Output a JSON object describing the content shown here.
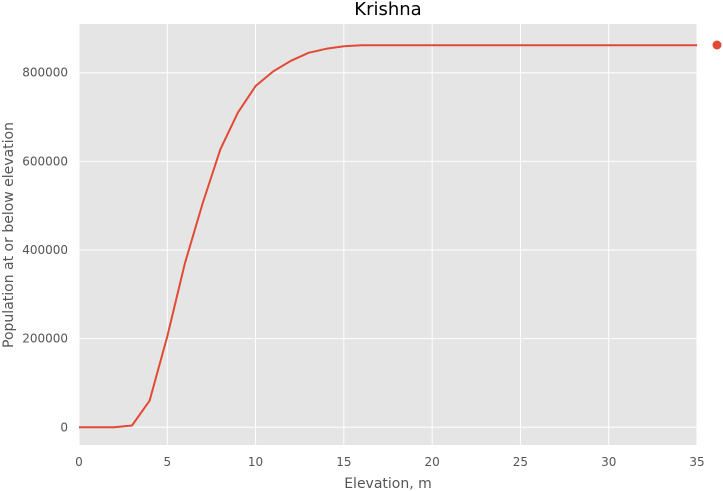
{
  "chart_data": {
    "type": "line",
    "title": "Krishna",
    "xlabel": "Elevation, m",
    "ylabel": "Population at or below elevation",
    "xlim": [
      0,
      35
    ],
    "ylim": [
      -40000,
      910000
    ],
    "xticks": [
      0,
      5,
      10,
      15,
      20,
      25,
      30,
      35
    ],
    "yticks": [
      0,
      200000,
      400000,
      600000,
      800000
    ],
    "xtick_labels": [
      "0",
      "5",
      "10",
      "15",
      "20",
      "25",
      "30",
      "35"
    ],
    "ytick_labels": [
      "0",
      "200000",
      "400000",
      "600000",
      "800000"
    ],
    "grid": true,
    "background": "#e5e5e5",
    "series": [
      {
        "color": "#e24a33",
        "x": [
          0,
          1,
          2,
          3,
          4,
          5,
          6,
          7,
          8,
          9,
          10,
          11,
          12,
          13,
          14,
          15,
          16,
          17,
          18,
          19,
          20,
          21,
          22,
          23,
          24,
          25,
          26,
          27,
          28,
          29,
          30,
          31,
          32,
          33,
          34,
          35
        ],
        "y": [
          0,
          0,
          0,
          4000,
          60000,
          205000,
          370000,
          505000,
          627000,
          710000,
          770000,
          803000,
          827000,
          845000,
          854000,
          860000,
          862000,
          862000,
          862000,
          862000,
          862000,
          862000,
          862000,
          862000,
          862000,
          862000,
          862000,
          862000,
          862000,
          862000,
          862000,
          862000,
          862000,
          862000,
          862000,
          862000
        ]
      }
    ],
    "legend_marker_color": "#e24a33"
  }
}
